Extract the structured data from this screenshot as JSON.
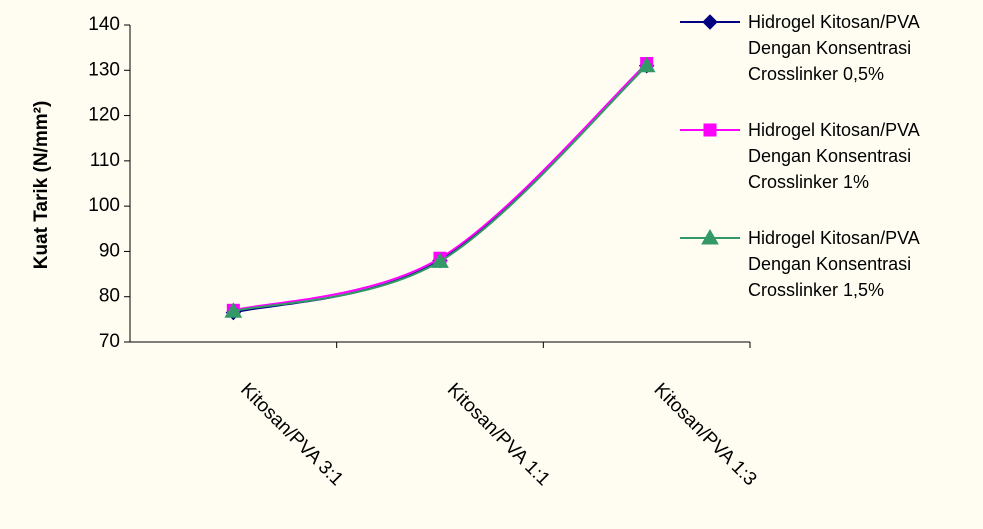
{
  "chart_data": {
    "type": "line",
    "y_label": "Kuat Tarik (N/mm²)",
    "categories": [
      "Kitosan/PVA 3:1",
      "Kitosan/PVA 1:1",
      "Kitosan/PVA 1:3"
    ],
    "series": [
      {
        "name": "Hidrogel Kitosan/PVA Dengan Konsentrasi Crosslinker 0,5%",
        "color": "#000080",
        "marker": "diamond",
        "values": [
          76.5,
          88,
          131
        ]
      },
      {
        "name": "Hidrogel Kitosan/PVA Dengan Konsentrasi Crosslinker 1%",
        "color": "#ff00ff",
        "marker": "square",
        "values": [
          77,
          88.5,
          131.5
        ]
      },
      {
        "name": "Hidrogel Kitosan/PVA Dengan Konsentrasi Crosslinker 1,5%",
        "color": "#339966",
        "marker": "triangle",
        "values": [
          76.8,
          87.8,
          131
        ]
      }
    ],
    "ylim": [
      70,
      140
    ],
    "yticks": [
      70,
      80,
      90,
      100,
      110,
      120,
      130,
      140
    ],
    "grid": false
  }
}
